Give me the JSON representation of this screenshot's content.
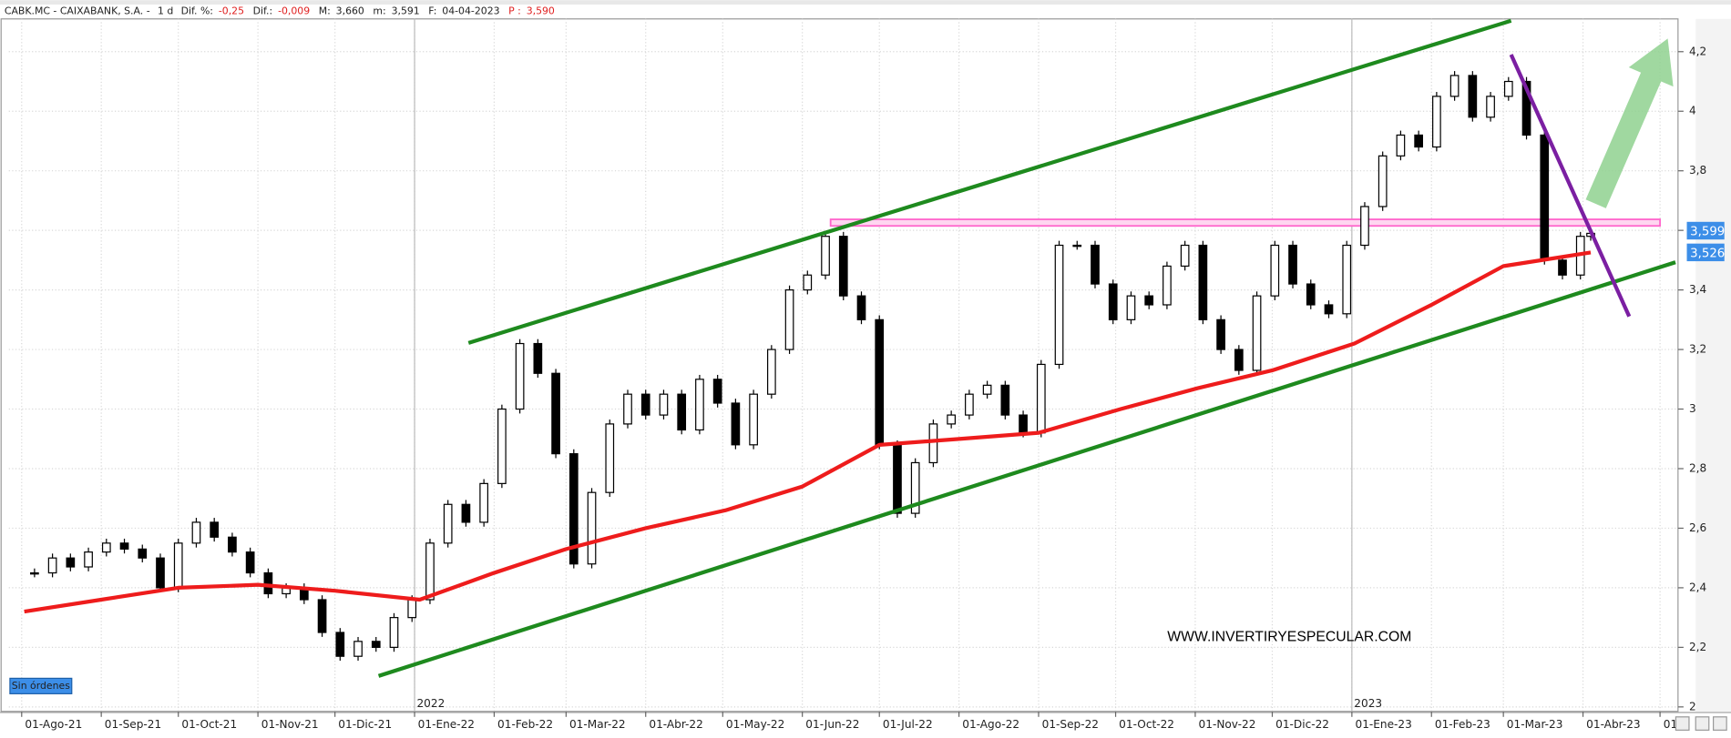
{
  "header": {
    "symbol": "CABK.MC - CAIXABANK, S.A. -",
    "period": "1 d",
    "fields": [
      {
        "label": "Dif. %:",
        "value": "-0,25"
      },
      {
        "label": "Dif.:",
        "value": "-0,009"
      },
      {
        "label": "M:",
        "value": "3,660"
      },
      {
        "label": "m:",
        "value": "3,591"
      },
      {
        "label": "F:",
        "value": "04-04-2023"
      },
      {
        "label": "P :",
        "value": "3,590"
      }
    ]
  },
  "orders_button": "Sin órdenes",
  "watermark": "WWW.INVERTIRYESPECULAR.COM",
  "chart_data": {
    "type": "candlestick",
    "x": [
      "2021-08-06",
      "2021-08-13",
      "2021-08-20",
      "2021-08-27",
      "2021-09-03",
      "2021-09-10",
      "2021-09-17",
      "2021-09-24",
      "2021-10-01",
      "2021-10-08",
      "2021-10-15",
      "2021-10-22",
      "2021-10-29",
      "2021-11-05",
      "2021-11-12",
      "2021-11-19",
      "2021-11-26",
      "2021-12-03",
      "2021-12-10",
      "2021-12-17",
      "2021-12-24",
      "2021-12-31",
      "2022-01-07",
      "2022-01-14",
      "2022-01-21",
      "2022-01-28",
      "2022-02-04",
      "2022-02-11",
      "2022-02-18",
      "2022-02-25",
      "2022-03-04",
      "2022-03-11",
      "2022-03-18",
      "2022-03-25",
      "2022-04-01",
      "2022-04-08",
      "2022-04-15",
      "2022-04-22",
      "2022-04-29",
      "2022-05-06",
      "2022-05-13",
      "2022-05-20",
      "2022-05-27",
      "2022-06-03",
      "2022-06-10",
      "2022-06-17",
      "2022-06-24",
      "2022-07-01",
      "2022-07-08",
      "2022-07-15",
      "2022-07-22",
      "2022-07-29",
      "2022-08-05",
      "2022-08-12",
      "2022-08-19",
      "2022-08-26",
      "2022-09-02",
      "2022-09-09",
      "2022-09-16",
      "2022-09-23",
      "2022-09-30",
      "2022-10-07",
      "2022-10-14",
      "2022-10-21",
      "2022-10-28",
      "2022-11-04",
      "2022-11-11",
      "2022-11-18",
      "2022-11-25",
      "2022-12-02",
      "2022-12-09",
      "2022-12-16",
      "2022-12-23",
      "2022-12-30",
      "2023-01-06",
      "2023-01-13",
      "2023-01-20",
      "2023-01-27",
      "2023-02-03",
      "2023-02-10",
      "2023-02-17",
      "2023-02-24",
      "2023-03-03",
      "2023-03-10",
      "2023-03-17",
      "2023-03-24",
      "2023-03-31",
      "2023-04-04"
    ],
    "series": [
      {
        "color": "#000000",
        "values": [
          2.45,
          2.5,
          2.47,
          2.52,
          2.55,
          2.53,
          2.5,
          2.4,
          2.55,
          2.62,
          2.57,
          2.52,
          2.45,
          2.38,
          2.4,
          2.36,
          2.25,
          2.17,
          2.22,
          2.2,
          2.3,
          2.36,
          2.55,
          2.68,
          2.62,
          2.75,
          3.0,
          3.22,
          3.12,
          2.85,
          2.48,
          2.72,
          2.95,
          3.05,
          2.98,
          3.05,
          2.93,
          3.1,
          3.02,
          2.88,
          3.05,
          3.2,
          3.4,
          3.45,
          3.58,
          3.38,
          3.3,
          2.88,
          2.65,
          2.82,
          2.95,
          2.98,
          3.05,
          3.08,
          2.98,
          2.92,
          3.15,
          3.55,
          3.55,
          3.42,
          3.3,
          3.38,
          3.35,
          3.48,
          3.55,
          3.3,
          3.2,
          3.13,
          3.38,
          3.55,
          3.42,
          3.35,
          3.32,
          3.55,
          3.68,
          3.85,
          3.92,
          3.88,
          4.05,
          4.12,
          3.98,
          4.05,
          4.1,
          3.92,
          3.5,
          3.45,
          3.58,
          3.59
        ]
      },
      {
        "color": "#ee1c1c",
        "x": [
          "2021-08-02",
          "2021-09-01",
          "2021-10-01",
          "2021-11-01",
          "2021-12-01",
          "2022-01-03",
          "2022-02-01",
          "2022-03-01",
          "2022-04-01",
          "2022-05-02",
          "2022-06-01",
          "2022-07-01",
          "2022-08-01",
          "2022-09-01",
          "2022-10-03",
          "2022-11-02",
          "2022-12-01",
          "2023-01-02",
          "2023-02-01",
          "2023-03-01",
          "2023-04-04"
        ],
        "values": [
          2.32,
          2.36,
          2.4,
          2.41,
          2.39,
          2.36,
          2.45,
          2.53,
          2.6,
          2.66,
          2.74,
          2.88,
          2.9,
          2.92,
          3.0,
          3.07,
          3.13,
          3.22,
          3.35,
          3.48,
          3.526
        ]
      }
    ],
    "xlim": [
      "2021-07-27",
      "2023-05-08"
    ],
    "xticks": [
      {
        "value": "2021-08-01",
        "label": "01-Ago-21"
      },
      {
        "value": "2021-09-01",
        "label": "01-Sep-21"
      },
      {
        "value": "2021-10-01",
        "label": "01-Oct-21"
      },
      {
        "value": "2021-11-01",
        "label": "01-Nov-21"
      },
      {
        "value": "2021-12-01",
        "label": "01-Dic-21"
      },
      {
        "value": "2022-01-01",
        "label": "01-Ene-22"
      },
      {
        "value": "2022-02-01",
        "label": "01-Feb-22"
      },
      {
        "value": "2022-03-01",
        "label": "01-Mar-22"
      },
      {
        "value": "2022-04-01",
        "label": "01-Abr-22"
      },
      {
        "value": "2022-05-01",
        "label": "01-May-22"
      },
      {
        "value": "2022-06-01",
        "label": "01-Jun-22"
      },
      {
        "value": "2022-07-01",
        "label": "01-Jul-22"
      },
      {
        "value": "2022-08-01",
        "label": "01-Ago-22"
      },
      {
        "value": "2022-09-01",
        "label": "01-Sep-22"
      },
      {
        "value": "2022-10-01",
        "label": "01-Oct-22"
      },
      {
        "value": "2022-11-01",
        "label": "01-Nov-22"
      },
      {
        "value": "2022-12-01",
        "label": "01-Dic-22"
      },
      {
        "value": "2023-01-01",
        "label": "01-Ene-23"
      },
      {
        "value": "2023-02-01",
        "label": "01-Feb-23"
      },
      {
        "value": "2023-03-01",
        "label": "01-Mar-23"
      },
      {
        "value": "2023-04-01",
        "label": "01-Abr-23"
      },
      {
        "value": "2023-05-01",
        "label": "01-"
      }
    ],
    "year_marks": [
      {
        "value": "2022-01-01",
        "label": "2022"
      },
      {
        "value": "2023-01-01",
        "label": "2023"
      }
    ],
    "ylim": [
      1.985,
      4.31
    ],
    "yticks": [
      2,
      {
        "value": 2.2,
        "label": "2,2"
      },
      {
        "value": 2.4,
        "label": "2,4"
      },
      {
        "value": 2.6,
        "label": "2,6"
      },
      {
        "value": 2.8,
        "label": "2,8"
      },
      3,
      {
        "value": 3.2,
        "label": "3,2"
      },
      {
        "value": 3.4,
        "label": "3,4"
      },
      {
        "value": 3.6,
        "label": "3,6"
      },
      {
        "value": 3.8,
        "label": "3,8"
      },
      4,
      {
        "value": 4.2,
        "label": "4,2"
      }
    ],
    "price_tags": [
      {
        "value": 3.599,
        "label": "3,599"
      },
      {
        "value": 3.526,
        "label": "3,526"
      }
    ],
    "grid": true,
    "trend_lines": [
      {
        "color": "#1e8a1e",
        "x": [
          "2022-01-22",
          "2023-03-04"
        ],
        "values": [
          3.222,
          4.304
        ]
      },
      {
        "color": "#1e8a1e",
        "x": [
          "2021-12-18",
          "2023-05-07"
        ],
        "values": [
          2.104,
          3.493
        ]
      },
      {
        "color": "#7b1fa2",
        "x": [
          "2023-03-04",
          "2023-04-19"
        ],
        "values": [
          4.19,
          3.311
        ]
      }
    ],
    "band": {
      "color": "#ff66cc",
      "x": [
        "2022-06-12",
        "2023-05-01"
      ],
      "values": [
        3.615,
        3.637
      ]
    },
    "arrow": {
      "color": "#8fd18f",
      "x": [
        "2023-04-06",
        "2023-05-04"
      ],
      "values": [
        3.689,
        4.244
      ]
    }
  }
}
